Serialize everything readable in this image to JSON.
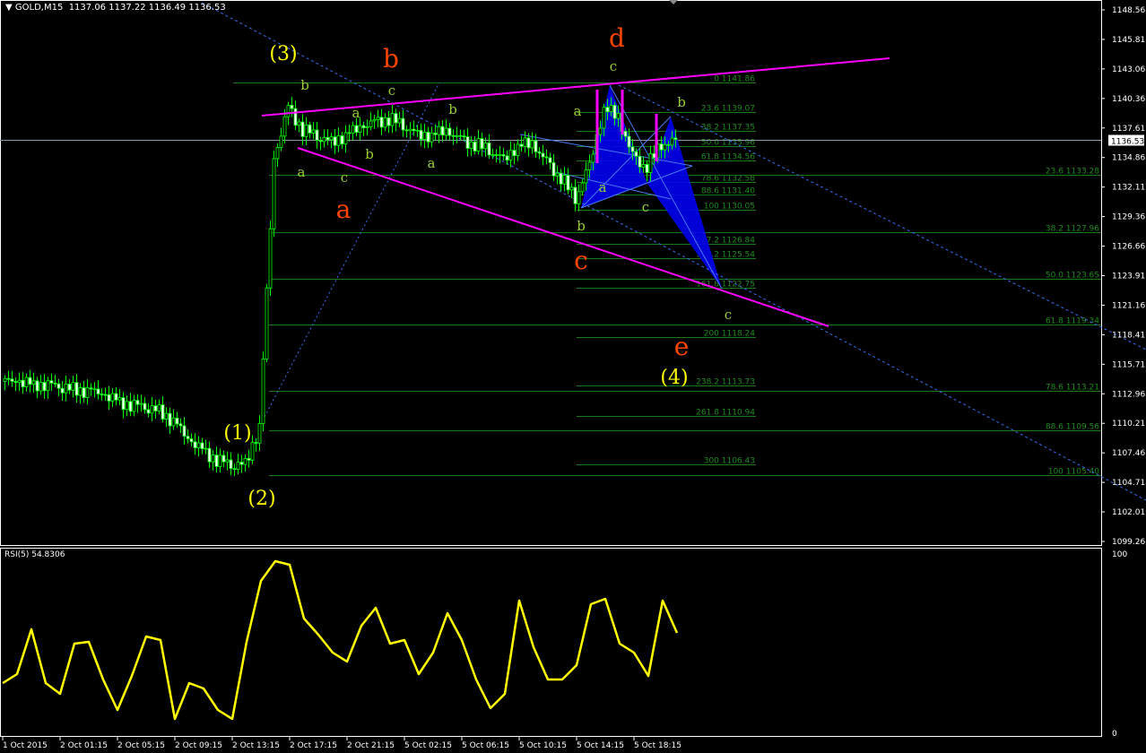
{
  "header": {
    "symbol": "GOLD,M15",
    "open": "1137.06",
    "high": "1137.22",
    "low": "1136.49",
    "close": "1136.53"
  },
  "rsi_header": "RSI(5) 54.8306",
  "current_price": "1136.53",
  "chart_data": [
    {
      "type": "candlestick",
      "title": "GOLD,M15",
      "ylim": [
        1099.26,
        1148.56
      ],
      "y_ticks": [
        "1148.56",
        "1145.81",
        "1143.06",
        "1140.36",
        "1137.61",
        "1134.86",
        "1132.11",
        "1129.36",
        "1126.66",
        "1123.91",
        "1121.16",
        "1118.41",
        "1115.71",
        "1112.96",
        "1110.21",
        "1107.46",
        "1104.71",
        "1102.01",
        "1099.26"
      ],
      "x_ticks": [
        "1 Oct 2015",
        "2 Oct 01:15",
        "2 Oct 05:15",
        "2 Oct 09:15",
        "2 Oct 13:15",
        "2 Oct 17:15",
        "2 Oct 21:15",
        "5 Oct 02:15",
        "5 Oct 06:15",
        "5 Oct 10:15",
        "5 Oct 14:15",
        "5 Oct 18:15"
      ],
      "hourly_close": [
        1114.1,
        1114.0,
        1113.9,
        1113.9,
        1113.6,
        1113.4,
        1113.3,
        1112.8,
        1112.4,
        1112.0,
        1111.7,
        1111.4,
        1110.5,
        1108.6,
        1107.8,
        1106.9,
        1106.3,
        1106.5,
        1110.0,
        1134.5,
        1139.6,
        1137.5,
        1136.8,
        1136.4,
        1137.0,
        1137.5,
        1138.2,
        1138.5,
        1137.8,
        1137.1,
        1137.0,
        1137.2,
        1136.6,
        1136.1,
        1135.5,
        1134.8,
        1136.0,
        1136.0,
        1134.5,
        1133.0,
        1131.0,
        1134.3,
        1139.5,
        1138.5,
        1135.0,
        1134.0,
        1136.0,
        1136.5
      ],
      "last_price": 1136.53,
      "fib_extension_left": [
        {
          "level": "0",
          "price": "1141.86"
        },
        {
          "level": "23.6",
          "price": "1139.07"
        },
        {
          "level": "38.2",
          "price": "1137.35"
        },
        {
          "level": "50.0",
          "price": "1135.96"
        },
        {
          "level": "61.8",
          "price": "1134.56"
        },
        {
          "level": "78.6",
          "price": "1132.58"
        },
        {
          "level": "88.6",
          "price": "1131.40"
        },
        {
          "level": "100",
          "price": "1130.05"
        },
        {
          "level": "127.2",
          "price": "1126.84"
        },
        {
          "level": "138.2",
          "price": "1125.54"
        },
        {
          "level": "161.8",
          "price": "1122.75"
        },
        {
          "level": "200",
          "price": "1118.24"
        },
        {
          "level": "238.2",
          "price": "1113.73"
        },
        {
          "level": "261.8",
          "price": "1110.94"
        },
        {
          "level": "300",
          "price": "1106.43"
        }
      ],
      "fib_retracement_right": [
        {
          "level": "23.6",
          "price": "1133.28"
        },
        {
          "level": "38.2",
          "price": "1127.96"
        },
        {
          "level": "50.0",
          "price": "1123.65"
        },
        {
          "level": "61.8",
          "price": "1119.34"
        },
        {
          "level": "78.6",
          "price": "1113.21"
        },
        {
          "level": "88.6",
          "price": "1109.56"
        },
        {
          "level": "100",
          "price": "1105.40"
        }
      ],
      "wave_labels": [
        {
          "text": "(1)",
          "color": "#ffff00"
        },
        {
          "text": "(2)",
          "color": "#ffff00"
        },
        {
          "text": "(3)",
          "color": "#ffff00"
        },
        {
          "text": "(4)",
          "color": "#ffff00"
        },
        {
          "text": "a",
          "color": "#ff4500"
        },
        {
          "text": "b",
          "color": "#ff4500"
        },
        {
          "text": "c",
          "color": "#ff4500"
        },
        {
          "text": "d",
          "color": "#ff4500"
        },
        {
          "text": "e",
          "color": "#ff4500"
        },
        {
          "text": "b",
          "color": "#9acd32"
        },
        {
          "text": "a",
          "color": "#9acd32"
        },
        {
          "text": "c",
          "color": "#9acd32"
        },
        {
          "text": "a",
          "color": "#9acd32"
        },
        {
          "text": "b",
          "color": "#9acd32"
        },
        {
          "text": "c",
          "color": "#9acd32"
        },
        {
          "text": "a",
          "color": "#9acd32"
        },
        {
          "text": "b",
          "color": "#9acd32"
        },
        {
          "text": "a",
          "color": "#9acd32"
        },
        {
          "text": "c",
          "color": "#9acd32"
        },
        {
          "text": "b",
          "color": "#9acd32"
        },
        {
          "text": "a",
          "color": "#9acd32"
        },
        {
          "text": "c",
          "color": "#9acd32"
        },
        {
          "text": "b",
          "color": "#9acd32"
        },
        {
          "text": "c",
          "color": "#9acd32"
        }
      ],
      "colors": {
        "background": "#000000",
        "candle": "#00ff00",
        "trendline": "#ff00ff",
        "channel": "#3a6df0",
        "harmonic": "#0000ff",
        "fib": "#1f8a1f"
      }
    },
    {
      "type": "line",
      "title": "RSI(5) 54.8306",
      "ylim": [
        0,
        100
      ],
      "y_ticks": [
        "100",
        "0"
      ],
      "series": [
        {
          "values": [
            28,
            33,
            58,
            28,
            22,
            50,
            51,
            30,
            13,
            32,
            54,
            52,
            8,
            28,
            25,
            13,
            8,
            51,
            85,
            96,
            94,
            64,
            55,
            45,
            40,
            60,
            70,
            50,
            52,
            33,
            45,
            67,
            52,
            30,
            14,
            22,
            74,
            48,
            30,
            30,
            38,
            72,
            75,
            50,
            45,
            32,
            74,
            56
          ],
          "color": "#ffff00"
        }
      ]
    }
  ]
}
